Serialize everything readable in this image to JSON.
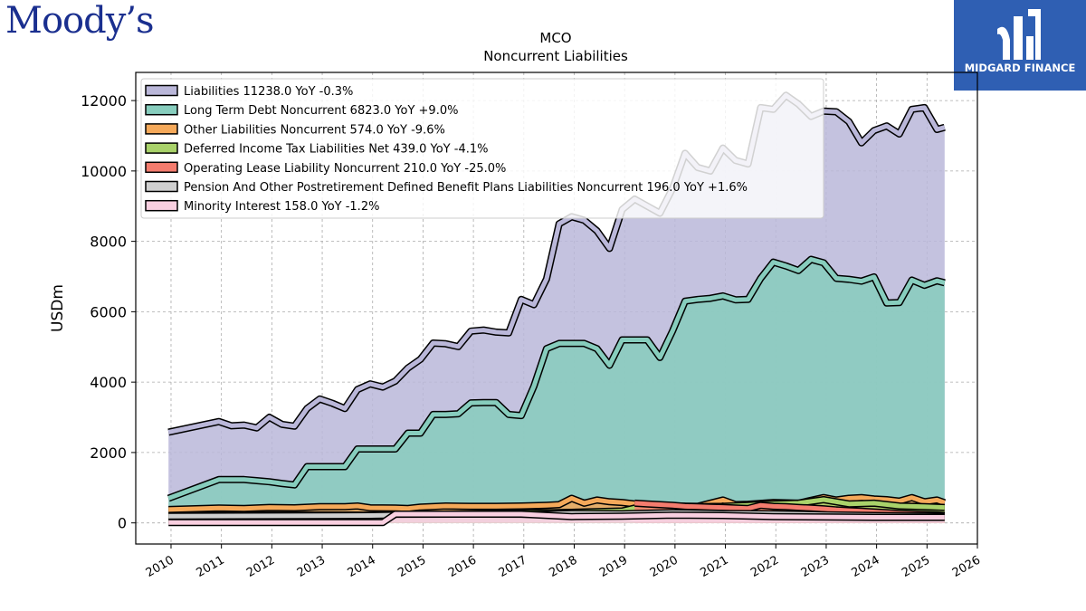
{
  "brand": {
    "left_logo_text": "Moody’s",
    "right_logo_text": "MIDGARD FINANCE"
  },
  "chart_data": {
    "type": "area",
    "title": "MCO",
    "subtitle": "Noncurrent  Liabilities",
    "ylabel": "USDm",
    "xlabel": "",
    "xlim": [
      2009.3,
      2026.0
    ],
    "ylim": [
      -600,
      12800
    ],
    "yticks": [
      0,
      2000,
      4000,
      6000,
      8000,
      10000,
      12000
    ],
    "xticks": [
      2010,
      2011,
      2012,
      2013,
      2014,
      2015,
      2016,
      2017,
      2018,
      2019,
      2020,
      2021,
      2022,
      2023,
      2024,
      2025,
      2026
    ],
    "grid": true,
    "legend_position": "top-left",
    "series": [
      {
        "name": "Liabilities",
        "legend": "Liabilities  11238.0 YoY -0.3%",
        "color": "#bab7d9",
        "x": [
          2009.95,
          2010.95,
          2011.2,
          2011.45,
          2011.7,
          2011.95,
          2012.2,
          2012.45,
          2012.7,
          2012.95,
          2013.2,
          2013.45,
          2013.7,
          2013.95,
          2014.2,
          2014.45,
          2014.7,
          2014.95,
          2015.2,
          2015.45,
          2015.7,
          2015.95,
          2016.2,
          2016.45,
          2016.7,
          2016.95,
          2017.2,
          2017.45,
          2017.7,
          2017.95,
          2018.2,
          2018.45,
          2018.7,
          2018.95,
          2019.2,
          2019.45,
          2019.7,
          2019.95,
          2020.2,
          2020.45,
          2020.7,
          2020.95,
          2021.2,
          2021.45,
          2021.7,
          2021.95,
          2022.2,
          2022.45,
          2022.7,
          2022.95,
          2023.2,
          2023.45,
          2023.7,
          2023.95,
          2024.2,
          2024.45,
          2024.7,
          2024.95,
          2025.2,
          2025.35
        ],
        "values": [
          2580,
          2880,
          2760,
          2780,
          2700,
          3000,
          2800,
          2750,
          3250,
          3520,
          3400,
          3250,
          3790,
          3950,
          3860,
          4030,
          4400,
          4650,
          5110,
          5090,
          5010,
          5450,
          5480,
          5420,
          5400,
          6350,
          6200,
          6930,
          8500,
          8700,
          8600,
          8300,
          7800,
          8900,
          9200,
          9000,
          8800,
          9500,
          10500,
          10100,
          10000,
          10650,
          10300,
          10200,
          11800,
          11750,
          12150,
          11900,
          11550,
          11700,
          11680,
          11400,
          10800,
          11150,
          11280,
          11050,
          11750,
          11800,
          11180,
          11238
        ]
      },
      {
        "name": "Long Term Debt Noncurrent",
        "legend": "Long Term Debt Noncurrent  6823.0 YoY +9.0%",
        "color": "#87cdbd",
        "x": [
          2009.95,
          2010.95,
          2011.2,
          2011.45,
          2011.7,
          2011.95,
          2012.2,
          2012.45,
          2012.7,
          2012.95,
          2013.2,
          2013.45,
          2013.7,
          2013.95,
          2014.2,
          2014.45,
          2014.7,
          2014.95,
          2015.2,
          2015.45,
          2015.7,
          2015.95,
          2016.2,
          2016.45,
          2016.7,
          2016.95,
          2017.2,
          2017.45,
          2017.7,
          2017.95,
          2018.2,
          2018.45,
          2018.7,
          2018.95,
          2019.2,
          2019.45,
          2019.7,
          2019.95,
          2020.2,
          2020.45,
          2020.7,
          2020.95,
          2021.2,
          2021.45,
          2021.7,
          2021.95,
          2022.2,
          2022.45,
          2022.7,
          2022.95,
          2023.2,
          2023.45,
          2023.7,
          2023.95,
          2024.2,
          2024.45,
          2024.7,
          2024.95,
          2025.2,
          2025.35
        ],
        "values": [
          700,
          1230,
          1230,
          1230,
          1200,
          1170,
          1120,
          1080,
          1600,
          1600,
          1600,
          1600,
          2100,
          2100,
          2100,
          2100,
          2550,
          2550,
          3080,
          3080,
          3100,
          3410,
          3420,
          3420,
          3080,
          3050,
          3880,
          4950,
          5100,
          5100,
          5100,
          4950,
          4480,
          5200,
          5200,
          5200,
          4700,
          5450,
          6300,
          6350,
          6380,
          6450,
          6340,
          6350,
          6950,
          7410,
          7300,
          7170,
          7490,
          7390,
          6950,
          6920,
          6870,
          6990,
          6250,
          6260,
          6900,
          6750,
          6880,
          6823
        ]
      },
      {
        "name": "Other Liabilities Noncurrent",
        "legend": "Other Liabilities Noncurrent  574.0 YoY -9.6%",
        "color": "#f5a95a",
        "x": [
          2009.95,
          2010.95,
          2011.45,
          2011.95,
          2012.45,
          2012.95,
          2013.45,
          2013.7,
          2013.95,
          2014.45,
          2014.7,
          2014.95,
          2015.45,
          2015.95,
          2016.45,
          2016.95,
          2017.45,
          2017.7,
          2017.95,
          2018.2,
          2018.45,
          2018.7,
          2018.95,
          2019.2,
          2019.45,
          2019.95,
          2020.45,
          2020.95,
          2021.2,
          2021.45,
          2021.95,
          2022.45,
          2022.95,
          2023.2,
          2023.45,
          2023.7,
          2023.95,
          2024.2,
          2024.45,
          2024.7,
          2024.95,
          2025.2,
          2025.35
        ],
        "values": [
          380,
          420,
          410,
          440,
          430,
          460,
          460,
          480,
          430,
          420,
          410,
          450,
          480,
          470,
          470,
          480,
          500,
          520,
          700,
          560,
          650,
          600,
          580,
          540,
          500,
          480,
          470,
          650,
          520,
          530,
          580,
          560,
          720,
          650,
          700,
          720,
          680,
          660,
          620,
          720,
          600,
          650,
          574
        ]
      },
      {
        "name": "Deferred Income Tax Liabilities Net",
        "legend": "Deferred Income Tax Liabilities Net  439.0 YoY -4.1%",
        "color": "#a9d26a",
        "x": [
          2009.95,
          2011.95,
          2013.95,
          2015.95,
          2017.95,
          2018.95,
          2019.2,
          2019.95,
          2020.95,
          2021.45,
          2021.95,
          2022.45,
          2022.95,
          2023.45,
          2023.95,
          2024.45,
          2024.95,
          2025.35
        ],
        "values": [
          200,
          230,
          220,
          260,
          300,
          340,
          420,
          450,
          470,
          500,
          540,
          560,
          660,
          540,
          560,
          480,
          460,
          439
        ]
      },
      {
        "name": "Operating Lease Liability Noncurrent",
        "legend": "Operating Lease Liability Noncurrent  210.0 YoY -25.0%",
        "color": "#f47c6e",
        "x": [
          2019.2,
          2019.45,
          2019.7,
          2019.95,
          2020.2,
          2020.45,
          2020.7,
          2020.95,
          2021.2,
          2021.45,
          2021.7,
          2021.95,
          2022.2,
          2022.45,
          2022.7,
          2022.95,
          2023.2,
          2023.45,
          2023.7,
          2023.95,
          2024.2,
          2024.45,
          2024.7,
          2024.95,
          2025.2,
          2025.35
        ],
        "values": [
          560,
          540,
          520,
          500,
          470,
          460,
          450,
          440,
          420,
          410,
          500,
          470,
          460,
          440,
          420,
          400,
          370,
          350,
          330,
          310,
          290,
          270,
          255,
          240,
          225,
          210
        ]
      },
      {
        "name": "Pension And Other Postretirement Defined Benefit Plans Liabilities Noncurrent",
        "legend": "Pension And Other Postretirement Defined Benefit Plans Liabilities Noncurrent  196.0 YoY +1.6%",
        "color": "#cfcfcf",
        "x": [
          2009.95,
          2011.95,
          2013.95,
          2014.7,
          2015.95,
          2016.95,
          2017.95,
          2018.95,
          2019.95,
          2020.95,
          2021.95,
          2022.95,
          2023.95,
          2024.95,
          2025.35
        ],
        "values": [
          190,
          200,
          210,
          230,
          250,
          230,
          270,
          260,
          290,
          270,
          260,
          230,
          210,
          200,
          196
        ]
      },
      {
        "name": "Minority Interest",
        "legend": "Minority Interest  158.0 YoY -1.2%",
        "color": "#f9cfe0",
        "x": [
          2009.95,
          2014.2,
          2014.45,
          2016.95,
          2017.95,
          2018.95,
          2019.95,
          2020.95,
          2021.95,
          2022.95,
          2023.95,
          2024.95,
          2025.35
        ],
        "values": [
          10,
          10,
          250,
          250,
          180,
          190,
          220,
          210,
          180,
          170,
          160,
          160,
          158
        ]
      }
    ]
  }
}
